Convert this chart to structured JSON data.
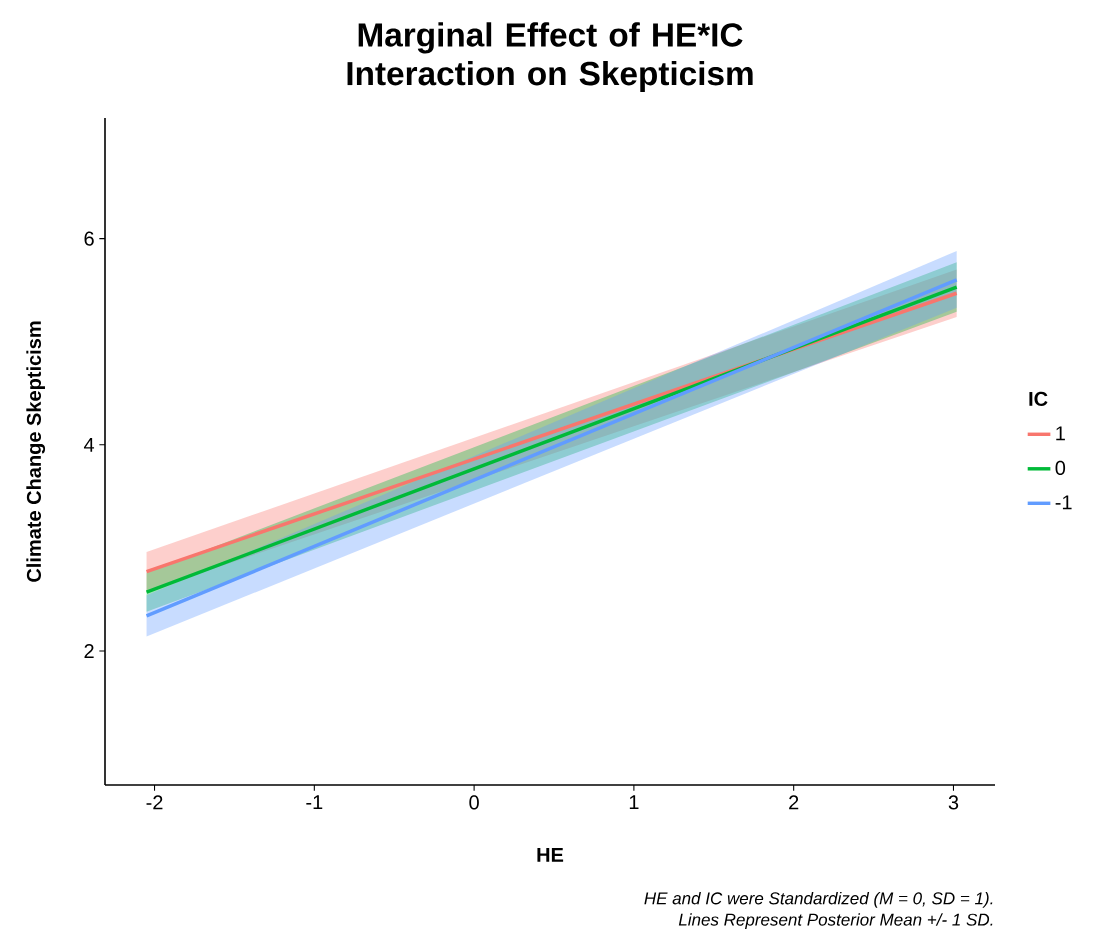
{
  "chart_data": {
    "type": "line",
    "title": "Marginal Effect of HE*IC Interaction on Skepticism",
    "xlabel": "HE",
    "ylabel": "Climate Change Skepticism",
    "legend_title": "IC",
    "legend": "right",
    "xlim": [
      -2.31,
      3.26
    ],
    "xticks": [
      -2,
      -1,
      0,
      1,
      2,
      3
    ],
    "ylim": [
      0.7,
      7.17
    ],
    "yticks": [
      2,
      4,
      6
    ],
    "grid": false,
    "x": [
      -2.05,
      3.02
    ],
    "series": [
      {
        "name": "1",
        "color": "#f8766d",
        "values": [
          2.77,
          5.47
        ],
        "lower": [
          2.58,
          5.24
        ],
        "upper": [
          2.96,
          5.7
        ]
      },
      {
        "name": "0",
        "color": "#00ba38",
        "values": [
          2.57,
          5.53
        ],
        "lower": [
          2.38,
          5.29
        ],
        "upper": [
          2.76,
          5.77
        ]
      },
      {
        "name": "-1",
        "color": "#619cff",
        "values": [
          2.34,
          5.6
        ],
        "lower": [
          2.14,
          5.33
        ],
        "upper": [
          2.54,
          5.88
        ]
      }
    ],
    "annotations": [
      "HE and IC were Standardized (M = 0, SD = 1).",
      "Lines Represent Posterior Mean +/- 1 SD."
    ]
  }
}
